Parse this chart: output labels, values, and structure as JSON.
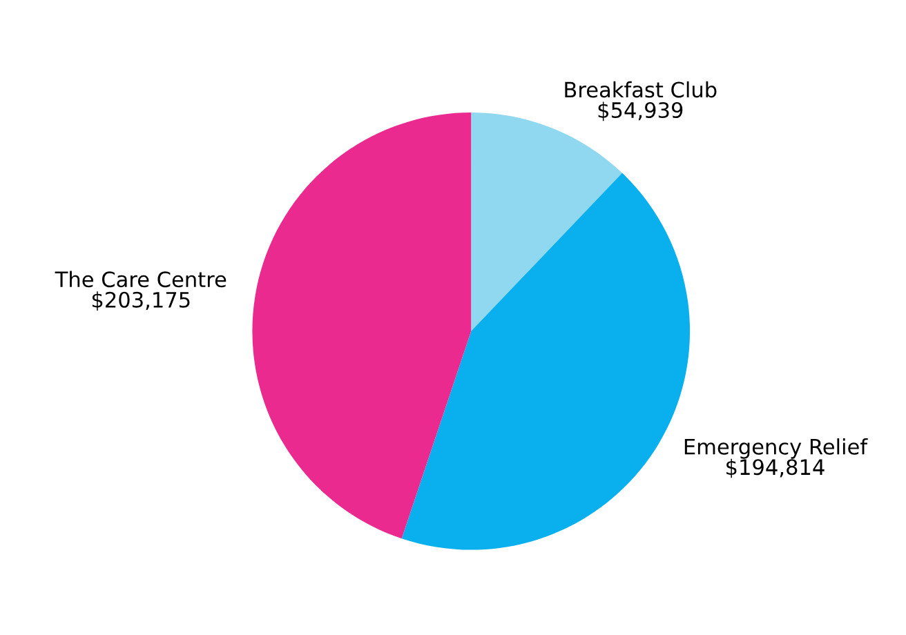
{
  "chart_data": {
    "type": "pie",
    "categories": [
      "Breakfast Club",
      "Emergency Relief",
      "The Care Centre"
    ],
    "values": [
      54939,
      194814,
      203175
    ],
    "value_labels": [
      "$54,939",
      "$194,814",
      "$203,175"
    ],
    "colors": [
      "#8fd8f0",
      "#0aafed",
      "#eb2a8f"
    ],
    "legend": false
  }
}
